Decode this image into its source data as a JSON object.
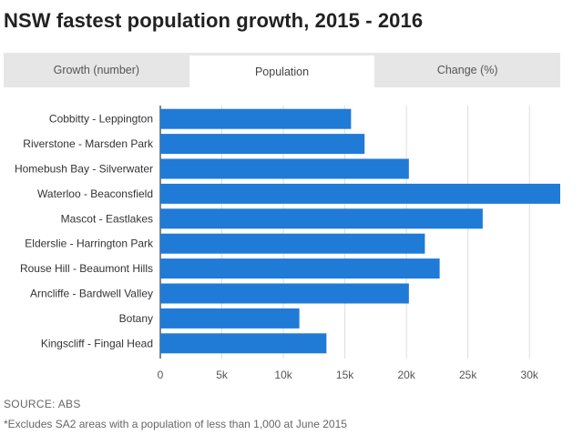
{
  "title": "NSW fastest population growth, 2015 - 2016",
  "tabs": [
    {
      "label": "Growth (number)",
      "active": false
    },
    {
      "label": "Population",
      "active": true
    },
    {
      "label": "Change (%)",
      "active": false
    }
  ],
  "chart_data": {
    "type": "bar",
    "orientation": "horizontal",
    "categories": [
      "Cobbitty - Leppington",
      "Riverstone - Marsden Park",
      "Homebush Bay - Silverwater",
      "Waterloo - Beaconsfield",
      "Mascot - Eastlakes",
      "Elderslie - Harrington Park",
      "Rouse Hill - Beaumont Hills",
      "Arncliffe - Bardwell Valley",
      "Botany",
      "Kingscliff - Fingal Head"
    ],
    "values": [
      15500,
      16600,
      20200,
      32500,
      26200,
      21500,
      22700,
      20200,
      11300,
      13500
    ],
    "xlim": [
      0,
      32500
    ],
    "xticks": [
      0,
      5000,
      10000,
      15000,
      20000,
      25000,
      30000
    ],
    "xtick_labels": [
      "0",
      "5k",
      "10k",
      "15k",
      "20k",
      "25k",
      "30k"
    ],
    "grid": true,
    "bar_color": "#1f7bd6"
  },
  "footer": {
    "source": "SOURCE: ABS",
    "note": "*Excludes SA2 areas with a population of less than 1,000 at June 2015"
  }
}
